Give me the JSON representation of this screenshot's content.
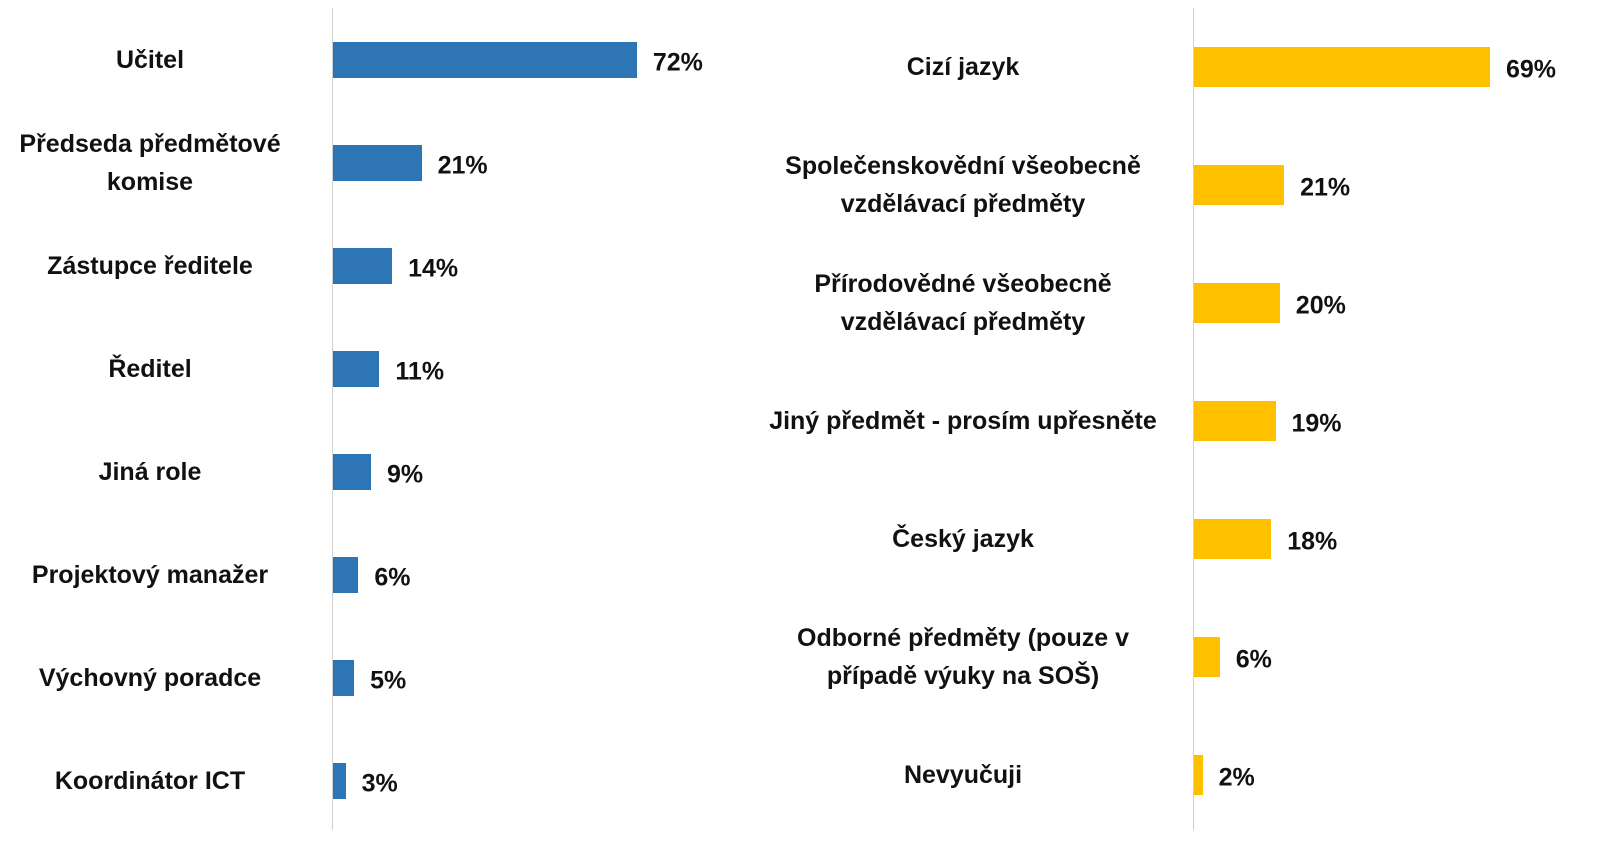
{
  "chart_data": [
    {
      "type": "bar",
      "orientation": "horizontal",
      "color": "#2e75b6",
      "categories": [
        "Učitel",
        "Předseda předmětové komise",
        "Zástupce ředitele",
        "Ředitel",
        "Jiná role",
        "Projektový manažer",
        "Výchovný poradce",
        "Koordinátor ICT"
      ],
      "values": [
        72,
        21,
        14,
        11,
        9,
        6,
        5,
        3
      ],
      "value_labels": [
        "72%",
        "21%",
        "14%",
        "11%",
        "9%",
        "6%",
        "5%",
        "3%"
      ]
    },
    {
      "type": "bar",
      "orientation": "horizontal",
      "color": "#ffc000",
      "categories": [
        "Cizí jazyk",
        "Společenskovědní všeobecně vzdělávací předměty",
        "Přírodovědné všeobecně vzdělávací předměty",
        "Jiný předmět - prosím upřesněte",
        "Český jazyk",
        "Odborné předměty (pouze v případě výuky na SOŠ)",
        "Nevyučuji"
      ],
      "values": [
        69,
        21,
        20,
        19,
        18,
        6,
        2
      ],
      "value_labels": [
        "69%",
        "21%",
        "20%",
        "19%",
        "18%",
        "6%",
        "2%"
      ]
    }
  ]
}
